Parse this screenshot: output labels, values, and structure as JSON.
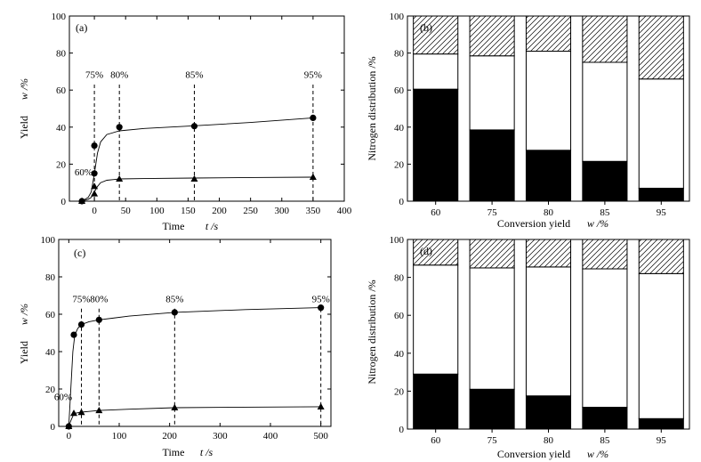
{
  "chart_data": [
    {
      "type": "scatter",
      "panel": "(a)",
      "xlabel": "Time",
      "xlabel_var": "t /s",
      "ylabel": "Yield",
      "ylabel_var": "w /%",
      "xlim": [
        -40,
        400
      ],
      "ylim": [
        0,
        100
      ],
      "xticks": [
        0,
        50,
        100,
        150,
        200,
        250,
        300,
        350,
        400
      ],
      "yticks": [
        0,
        20,
        40,
        60,
        80,
        100
      ],
      "series": [
        {
          "name": "circles",
          "marker": "circle",
          "x": [
            -20,
            0,
            0,
            40,
            160,
            350
          ],
          "y": [
            0,
            15,
            30,
            40,
            40.5,
            45
          ]
        },
        {
          "name": "triangles",
          "marker": "triangle",
          "x": [
            -20,
            0,
            0,
            40,
            160,
            350
          ],
          "y": [
            0,
            4,
            8,
            12,
            12,
            13
          ]
        }
      ],
      "curves": [
        {
          "x": [
            -20,
            -10,
            -5,
            0,
            5,
            10,
            20,
            40,
            80,
            120,
            160,
            250,
            350
          ],
          "y": [
            0,
            2,
            5,
            15,
            26,
            32,
            36,
            38,
            39.3,
            40,
            40.7,
            42.5,
            45
          ]
        },
        {
          "x": [
            -20,
            -10,
            -5,
            0,
            5,
            10,
            20,
            40,
            80,
            160,
            250,
            350
          ],
          "y": [
            0,
            1,
            2,
            5,
            8,
            10,
            11.3,
            12,
            12.2,
            12.5,
            12.8,
            13
          ]
        }
      ],
      "markers": [
        {
          "label": "60%",
          "x": 0,
          "dashed": false
        },
        {
          "label": "75%",
          "x": 0,
          "dashed": true
        },
        {
          "label": "80%",
          "x": 40,
          "dashed": true
        },
        {
          "label": "85%",
          "x": 160,
          "dashed": true
        },
        {
          "label": "95%",
          "x": 350,
          "dashed": true
        }
      ]
    },
    {
      "type": "bar",
      "stacked": true,
      "panel": "(b)",
      "xlabel": "Conversion yield",
      "xlabel_var": "w /%",
      "ylabel": "Nitrogen distribution /%",
      "ylim": [
        0,
        100
      ],
      "yticks": [
        0,
        20,
        40,
        60,
        80,
        100
      ],
      "categories": [
        "60",
        "75",
        "80",
        "85",
        "95"
      ],
      "series": [
        {
          "name": "solid",
          "fill": "black",
          "values": [
            60.5,
            38.5,
            27.5,
            21.5,
            7
          ]
        },
        {
          "name": "blank",
          "fill": "white",
          "values": [
            19,
            40,
            53.5,
            53.5,
            59
          ]
        },
        {
          "name": "hatched",
          "fill": "hatch",
          "values": [
            20.5,
            21.5,
            19,
            25,
            34
          ]
        }
      ]
    },
    {
      "type": "scatter",
      "panel": "(c)",
      "xlabel": "Time",
      "xlabel_var": "t /s",
      "ylabel": "Yield",
      "ylabel_var": "w /%",
      "xlim": [
        -20,
        520
      ],
      "ylim": [
        0,
        100
      ],
      "xticks": [
        0,
        100,
        200,
        300,
        400,
        500
      ],
      "yticks": [
        0,
        20,
        40,
        60,
        80,
        100
      ],
      "series": [
        {
          "name": "circles",
          "marker": "circle",
          "x": [
            0,
            10,
            25,
            60,
            210,
            500
          ],
          "y": [
            0,
            49,
            54.5,
            57,
            61,
            63.5
          ]
        },
        {
          "name": "triangles",
          "marker": "triangle",
          "x": [
            0,
            10,
            25,
            60,
            210,
            500
          ],
          "y": [
            0,
            7,
            7.5,
            8.5,
            10,
            10.5
          ]
        }
      ],
      "curves": [
        {
          "x": [
            0,
            4,
            8,
            12,
            18,
            25,
            40,
            60,
            120,
            210,
            350,
            500
          ],
          "y": [
            0,
            20,
            40,
            49,
            52.5,
            54.5,
            56,
            57,
            59,
            61,
            62.5,
            63.5
          ]
        },
        {
          "x": [
            0,
            4,
            8,
            12,
            18,
            25,
            40,
            60,
            120,
            210,
            350,
            500
          ],
          "y": [
            0,
            3,
            5.5,
            7,
            7.3,
            7.6,
            8,
            8.5,
            9.2,
            10,
            10.3,
            10.5
          ]
        }
      ],
      "markers": [
        {
          "label": "60%",
          "x": 10,
          "dashed": false
        },
        {
          "label": "75%",
          "x": 25,
          "dashed": true
        },
        {
          "label": "80%",
          "x": 60,
          "dashed": true
        },
        {
          "label": "85%",
          "x": 210,
          "dashed": true
        },
        {
          "label": "95%",
          "x": 500,
          "dashed": true
        }
      ]
    },
    {
      "type": "bar",
      "stacked": true,
      "panel": "(d)",
      "xlabel": "Conversion yield",
      "xlabel_var": "w /%",
      "ylabel": "Nitrogen distribution /%",
      "ylim": [
        0,
        100
      ],
      "yticks": [
        0,
        20,
        40,
        60,
        80,
        100
      ],
      "categories": [
        "60",
        "75",
        "80",
        "85",
        "95"
      ],
      "series": [
        {
          "name": "solid",
          "fill": "black",
          "values": [
            29,
            21,
            17.5,
            11.5,
            5.5
          ]
        },
        {
          "name": "blank",
          "fill": "white",
          "values": [
            57.5,
            64,
            68,
            73,
            76.5
          ]
        },
        {
          "name": "hatched",
          "fill": "hatch",
          "values": [
            13.5,
            15,
            14.5,
            15.5,
            18
          ]
        }
      ]
    }
  ]
}
